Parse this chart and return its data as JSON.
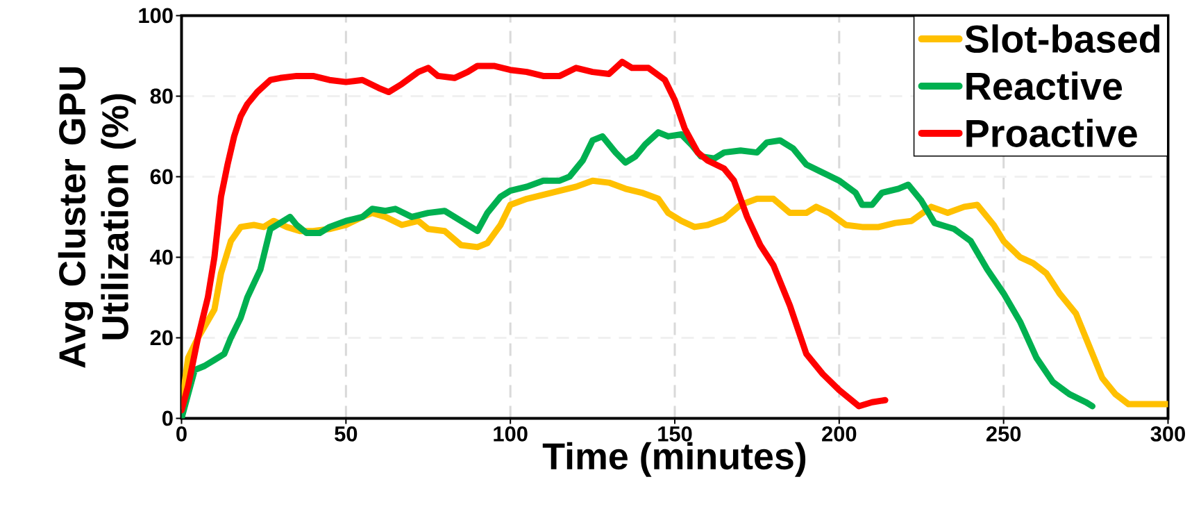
{
  "chart_data": {
    "type": "line",
    "xlabel": "Time (minutes)",
    "ylabel": "Avg Cluster GPU Utilization (%)",
    "xlim": [
      0,
      300
    ],
    "xticks": [
      0,
      50,
      100,
      150,
      200,
      250,
      300
    ],
    "ylim": [
      0,
      100
    ],
    "yticks": [
      0,
      20,
      40,
      60,
      80,
      100
    ],
    "grid": true,
    "legend": "top right",
    "line_style": "solid",
    "series": [
      {
        "name": "Slot-based",
        "color": "#ffc000",
        "x": [
          0,
          2,
          5,
          10,
          12,
          15,
          18,
          22,
          25,
          28,
          32,
          36,
          40,
          45,
          50,
          55,
          58,
          62,
          67,
          72,
          75,
          80,
          85,
          90,
          93,
          97,
          100,
          105,
          110,
          115,
          120,
          125,
          130,
          135,
          140,
          145,
          148,
          152,
          156,
          160,
          165,
          170,
          175,
          180,
          185,
          190,
          193,
          197,
          202,
          207,
          212,
          217,
          222,
          228,
          233,
          238,
          242,
          247,
          250,
          255,
          259,
          263,
          267,
          272,
          276,
          280,
          284,
          288,
          295,
          300
        ],
        "values": [
          3,
          15,
          20,
          27,
          36,
          44,
          47.5,
          48,
          47.5,
          49,
          47.5,
          46.5,
          46.5,
          47,
          48,
          50,
          51,
          50,
          48,
          49,
          47,
          46.5,
          43,
          42.5,
          43.5,
          48,
          53,
          54.5,
          55.5,
          56.5,
          57.5,
          59,
          58.5,
          57,
          56,
          54.5,
          51,
          49,
          47.5,
          48,
          49.5,
          53,
          54.5,
          54.5,
          51,
          51,
          52.5,
          51,
          48,
          47.5,
          47.5,
          48.5,
          49,
          52.5,
          51,
          52.5,
          53,
          48,
          44,
          40,
          38.5,
          36,
          31,
          26,
          18,
          10,
          6,
          3.5,
          3.5,
          3.5
        ]
      },
      {
        "name": "Reactive",
        "color": "#00b050",
        "x": [
          0,
          2,
          4,
          7,
          10,
          13,
          15,
          18,
          20,
          24,
          27,
          30,
          33,
          35,
          38,
          42,
          45,
          50,
          55,
          58,
          62,
          65,
          70,
          75,
          80,
          85,
          90,
          93,
          97,
          100,
          105,
          110,
          115,
          118,
          122,
          125,
          128,
          132,
          135,
          138,
          141,
          145,
          148,
          152,
          155,
          158,
          162,
          165,
          170,
          175,
          178,
          182,
          186,
          190,
          195,
          200,
          205,
          207,
          210,
          213,
          218,
          221,
          225,
          229,
          235,
          240,
          245,
          250,
          255,
          260,
          265,
          270,
          275,
          277
        ],
        "values": [
          0,
          6,
          12,
          13,
          14.5,
          16,
          20,
          25,
          30,
          37,
          47,
          48.5,
          50,
          48,
          46,
          46,
          47.5,
          49,
          50,
          52,
          51.5,
          52,
          50,
          51,
          51.5,
          49,
          46.5,
          51,
          55,
          56.5,
          57.5,
          59,
          59,
          60,
          64,
          69,
          70,
          66,
          63.5,
          65,
          68,
          71,
          70,
          70.5,
          68,
          65,
          64.5,
          66,
          66.5,
          66,
          68.5,
          69,
          67,
          63,
          61,
          59,
          56,
          53,
          53,
          56,
          57,
          58,
          54,
          48.5,
          47,
          44,
          37,
          31,
          24,
          15,
          9,
          6,
          4,
          3
        ]
      },
      {
        "name": "Proactive",
        "color": "#ff0000",
        "x": [
          0,
          2,
          5,
          8,
          10,
          12,
          14,
          16,
          18,
          20,
          23,
          27,
          30,
          35,
          40,
          45,
          50,
          55,
          60,
          63,
          67,
          72,
          75,
          78,
          83,
          87,
          90,
          95,
          100,
          105,
          110,
          115,
          120,
          125,
          130,
          134,
          137,
          142,
          147,
          150,
          153,
          157,
          160,
          165,
          168,
          172,
          176,
          180,
          185,
          190,
          195,
          200,
          206,
          210,
          214
        ],
        "values": [
          2,
          8,
          20,
          30,
          40,
          55,
          63,
          70,
          75,
          78,
          81,
          84,
          84.5,
          85,
          85,
          84,
          83.5,
          84,
          82,
          81,
          83,
          86,
          87,
          85,
          84.5,
          86,
          87.5,
          87.5,
          86.5,
          86,
          85,
          85,
          87,
          86,
          85.5,
          88.5,
          87,
          87,
          84,
          79,
          72,
          66,
          64,
          62,
          59,
          50,
          43,
          38,
          28,
          16,
          11,
          7,
          3,
          4,
          4.5
        ]
      }
    ]
  }
}
